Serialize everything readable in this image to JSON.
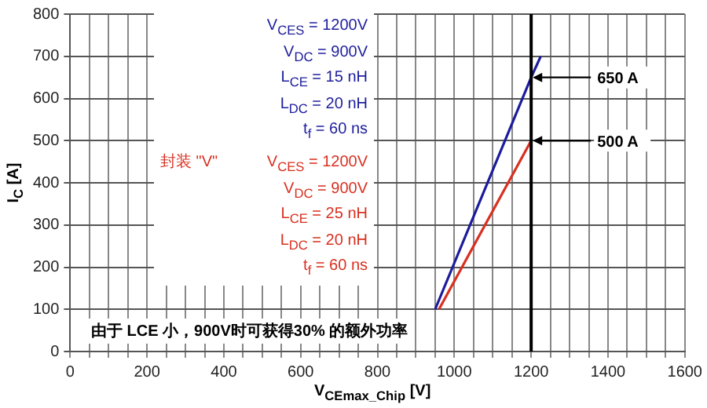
{
  "chart_data": {
    "type": "line",
    "xlabel": "V$_{CEmax_Chip}$ [V]",
    "ylabel": "I$_{C}$ [A]",
    "xlim": [
      0,
      1600
    ],
    "ylim": [
      0,
      800
    ],
    "xticks": [
      0,
      {
        "value": 50,
        "label": null
      },
      {
        "value": 100,
        "label": null
      },
      {
        "value": 150,
        "label": null
      },
      200,
      {
        "value": 250,
        "label": null
      },
      {
        "value": 300,
        "label": null
      },
      {
        "value": 350,
        "label": null
      },
      400,
      {
        "value": 450,
        "label": null
      },
      {
        "value": 500,
        "label": null
      },
      {
        "value": 550,
        "label": null
      },
      600,
      {
        "value": 650,
        "label": null
      },
      {
        "value": 700,
        "label": null
      },
      {
        "value": 750,
        "label": null
      },
      800,
      {
        "value": 850,
        "label": null
      },
      {
        "value": 900,
        "label": null
      },
      {
        "value": 950,
        "label": null
      },
      1000,
      {
        "value": 1050,
        "label": null
      },
      {
        "value": 1100,
        "label": null
      },
      {
        "value": 1150,
        "label": null
      },
      1200,
      {
        "value": 1250,
        "label": null
      },
      {
        "value": 1300,
        "label": null
      },
      {
        "value": 1350,
        "label": null
      },
      1400,
      {
        "value": 1450,
        "label": null
      },
      {
        "value": 1500,
        "label": null
      },
      {
        "value": 1550,
        "label": null
      },
      1600
    ],
    "yticks": [
      0,
      100,
      200,
      300,
      400,
      500,
      600,
      700,
      800
    ],
    "grid": true,
    "marker": "none",
    "line_style": "solid",
    "series": [
      {
        "color": "#1c1c9c",
        "x": [
          950,
          1200,
          1225
        ],
        "values": [
          100,
          650,
          700
        ]
      },
      {
        "name": "封装 \"V\"",
        "color": "#d83020",
        "x": [
          960,
          1200
        ],
        "values": [
          100,
          500
        ]
      }
    ],
    "ref_lines": [
      {
        "axis": "x",
        "value": 1200,
        "color": "#000000"
      }
    ],
    "annotations": [
      "V$_{CES}$ = 1200V",
      "V$_{DC}$ = 900V",
      "L$_{CE}$ = 15 nH",
      "L$_{DC}$ = 20 nH",
      "t$_{f}$ = 60 ns",
      "V$_{CES}$ = 1200V",
      "V$_{DC}$ = 900V",
      "L$_{CE}$ = 25 nH",
      "L$_{DC}$ = 20 nH",
      "t$_{f}$ = 60 ns",
      "由于 LCE 小，900V时可获得30% 的额外功率",
      {
        "text": "650 A",
        "x": 1200,
        "y": 650
      },
      {
        "text": "500 A",
        "x": 1200,
        "y": 500
      }
    ]
  }
}
